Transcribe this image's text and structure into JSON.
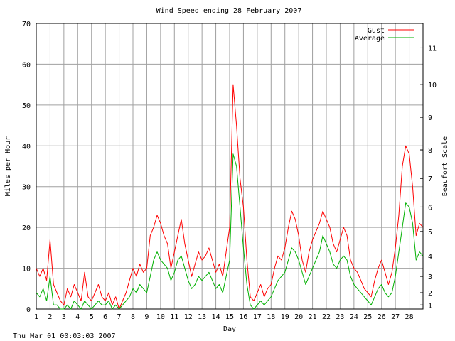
{
  "footer": {
    "timestamp": "Thu Mar 01 00:03:03 2007"
  },
  "chart_data": {
    "type": "line",
    "title": "Wind Speed ending 28 February 2007",
    "xlabel": "Day",
    "ylabel": "Miles per Hour",
    "y2label": "Beaufort Scale",
    "xlim": [
      1,
      29
    ],
    "ylim": [
      0,
      70
    ],
    "grid": true,
    "legend_position": "top-right",
    "x_ticks": [
      "1",
      "2",
      "3",
      "4",
      "5",
      "6",
      "7",
      "8",
      "9",
      "10",
      "11",
      "12",
      "13",
      "14",
      "15",
      "16",
      "17",
      "18",
      "19",
      "20",
      "21",
      "22",
      "23",
      "24",
      "25",
      "26",
      "27",
      "28"
    ],
    "y_ticks": [
      0,
      10,
      20,
      30,
      40,
      50,
      60,
      70
    ],
    "y2_ticks": [
      {
        "label": "1",
        "mph": 1
      },
      {
        "label": "2",
        "mph": 4
      },
      {
        "label": "3",
        "mph": 8
      },
      {
        "label": "4",
        "mph": 13
      },
      {
        "label": "5",
        "mph": 19
      },
      {
        "label": "6",
        "mph": 25
      },
      {
        "label": "7",
        "mph": 32
      },
      {
        "label": "8",
        "mph": 39
      },
      {
        "label": "9",
        "mph": 47
      },
      {
        "label": "10",
        "mph": 55
      },
      {
        "label": "11",
        "mph": 64
      }
    ],
    "series": [
      {
        "name": "Gust",
        "color": "#ff0000",
        "x": [
          1.0,
          1.25,
          1.5,
          1.75,
          2.0,
          2.25,
          2.5,
          2.75,
          3.0,
          3.25,
          3.5,
          3.75,
          4.0,
          4.25,
          4.5,
          4.75,
          5.0,
          5.25,
          5.5,
          5.75,
          6.0,
          6.25,
          6.5,
          6.75,
          7.0,
          7.25,
          7.5,
          7.75,
          8.0,
          8.25,
          8.5,
          8.75,
          9.0,
          9.25,
          9.5,
          9.75,
          10.0,
          10.25,
          10.5,
          10.75,
          11.0,
          11.25,
          11.5,
          11.75,
          12.0,
          12.25,
          12.5,
          12.75,
          13.0,
          13.25,
          13.5,
          13.75,
          14.0,
          14.25,
          14.5,
          14.75,
          15.0,
          15.25,
          15.5,
          15.75,
          16.0,
          16.25,
          16.5,
          16.75,
          17.0,
          17.25,
          17.5,
          17.75,
          18.0,
          18.25,
          18.5,
          18.75,
          19.0,
          19.25,
          19.5,
          19.75,
          20.0,
          20.25,
          20.5,
          20.75,
          21.0,
          21.25,
          21.5,
          21.75,
          22.0,
          22.25,
          22.5,
          22.75,
          23.0,
          23.25,
          23.5,
          23.75,
          24.0,
          24.25,
          24.5,
          24.75,
          25.0,
          25.25,
          25.5,
          25.75,
          26.0,
          26.25,
          26.5,
          26.75,
          27.0,
          27.25,
          27.5,
          27.75,
          28.0,
          28.25,
          28.5,
          28.75,
          29.0
        ],
        "values": [
          10,
          8,
          10,
          7,
          17,
          6,
          4,
          2,
          1,
          5,
          3,
          6,
          4,
          2,
          9,
          3,
          2,
          4,
          6,
          3,
          2,
          4,
          1,
          3,
          0,
          2,
          4,
          7,
          10,
          8,
          11,
          9,
          10,
          18,
          20,
          23,
          21,
          18,
          16,
          10,
          14,
          18,
          22,
          16,
          12,
          8,
          11,
          14,
          12,
          13,
          15,
          12,
          9,
          11,
          8,
          14,
          20,
          55,
          45,
          32,
          25,
          12,
          3,
          2,
          4,
          6,
          3,
          5,
          6,
          10,
          13,
          12,
          15,
          20,
          24,
          22,
          18,
          12,
          9,
          14,
          17,
          19,
          21,
          24,
          22,
          20,
          16,
          14,
          17,
          20,
          18,
          12,
          10,
          9,
          7,
          5,
          4,
          3,
          7,
          10,
          12,
          9,
          6,
          9,
          15,
          23,
          35,
          40,
          38,
          30,
          18,
          21,
          20
        ]
      },
      {
        "name": "Average",
        "color": "#00b000",
        "x": [
          1.0,
          1.25,
          1.5,
          1.75,
          2.0,
          2.25,
          2.5,
          2.75,
          3.0,
          3.25,
          3.5,
          3.75,
          4.0,
          4.25,
          4.5,
          4.75,
          5.0,
          5.25,
          5.5,
          5.75,
          6.0,
          6.25,
          6.5,
          6.75,
          7.0,
          7.25,
          7.5,
          7.75,
          8.0,
          8.25,
          8.5,
          8.75,
          9.0,
          9.25,
          9.5,
          9.75,
          10.0,
          10.25,
          10.5,
          10.75,
          11.0,
          11.25,
          11.5,
          11.75,
          12.0,
          12.25,
          12.5,
          12.75,
          13.0,
          13.25,
          13.5,
          13.75,
          14.0,
          14.25,
          14.5,
          14.75,
          15.0,
          15.25,
          15.5,
          15.75,
          16.0,
          16.25,
          16.5,
          16.75,
          17.0,
          17.25,
          17.5,
          17.75,
          18.0,
          18.25,
          18.5,
          18.75,
          19.0,
          19.25,
          19.5,
          19.75,
          20.0,
          20.25,
          20.5,
          20.75,
          21.0,
          21.25,
          21.5,
          21.75,
          22.0,
          22.25,
          22.5,
          22.75,
          23.0,
          23.25,
          23.5,
          23.75,
          24.0,
          24.25,
          24.5,
          24.75,
          25.0,
          25.25,
          25.5,
          25.75,
          26.0,
          26.25,
          26.5,
          26.75,
          27.0,
          27.25,
          27.5,
          27.75,
          28.0,
          28.25,
          28.5,
          28.75,
          29.0
        ],
        "values": [
          4,
          3,
          5,
          2,
          8,
          1,
          1,
          0,
          0,
          1,
          0,
          2,
          1,
          0,
          2,
          1,
          0,
          1,
          2,
          1,
          1,
          2,
          0,
          1,
          0,
          1,
          2,
          3,
          5,
          4,
          6,
          5,
          4,
          8,
          12,
          14,
          12,
          11,
          10,
          7,
          9,
          12,
          13,
          10,
          7,
          5,
          6,
          8,
          7,
          8,
          9,
          7,
          5,
          6,
          4,
          8,
          12,
          38,
          35,
          25,
          15,
          6,
          1,
          0,
          1,
          2,
          1,
          2,
          3,
          5,
          7,
          8,
          9,
          12,
          15,
          14,
          12,
          9,
          6,
          8,
          10,
          12,
          14,
          18,
          16,
          14,
          11,
          10,
          12,
          13,
          12,
          8,
          6,
          5,
          4,
          3,
          2,
          1,
          3,
          5,
          6,
          4,
          3,
          4,
          8,
          14,
          20,
          26,
          25,
          21,
          12,
          14,
          13
        ]
      }
    ]
  }
}
